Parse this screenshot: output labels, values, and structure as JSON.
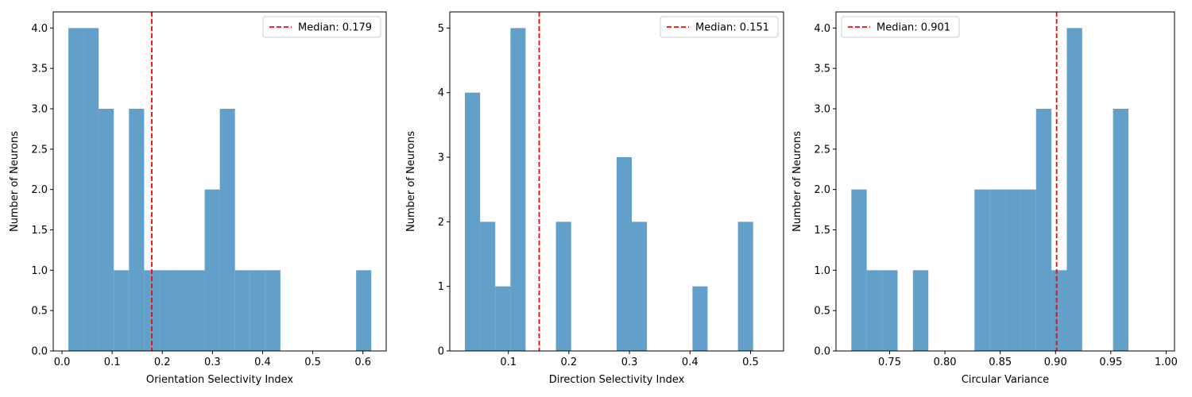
{
  "chart_data": [
    {
      "type": "bar",
      "subtype": "histogram",
      "xlabel": "Orientation Selectivity Index",
      "ylabel": "Number of Neurons",
      "xlim": [
        -0.0175,
        0.6465
      ],
      "ylim": [
        0,
        4.2
      ],
      "xticks": [
        0.0,
        0.1,
        0.2,
        0.3,
        0.4,
        0.5,
        0.6
      ],
      "xtick_labels": [
        "0.0",
        "0.1",
        "0.2",
        "0.3",
        "0.4",
        "0.5",
        "0.6"
      ],
      "yticks": [
        0.0,
        0.5,
        1.0,
        1.5,
        2.0,
        2.5,
        3.0,
        3.5,
        4.0
      ],
      "ytick_labels": [
        "0.0",
        "0.5",
        "1.0",
        "1.5",
        "2.0",
        "2.5",
        "3.0",
        "3.5",
        "4.0"
      ],
      "bin_edges": [
        0.0127,
        0.0429,
        0.0731,
        0.1033,
        0.1335,
        0.1637,
        0.1939,
        0.2241,
        0.2543,
        0.2845,
        0.3147,
        0.3449,
        0.3751,
        0.4053,
        0.4355,
        0.4657,
        0.4959,
        0.5261,
        0.5563,
        0.5865,
        0.6167
      ],
      "counts": [
        4,
        4,
        3,
        1,
        3,
        1,
        1,
        1,
        1,
        2,
        3,
        1,
        1,
        1,
        0,
        0,
        0,
        0,
        0,
        1
      ],
      "median": 0.179,
      "median_label": "Median: 0.179",
      "legend_position": "upper right",
      "grid": false,
      "bar_color": "#1f77b4",
      "median_color": "#ff0000"
    },
    {
      "type": "bar",
      "subtype": "histogram",
      "xlabel": "Direction Selectivity Index",
      "ylabel": "Number of Neurons",
      "xlim": [
        0.0033,
        0.5545
      ],
      "ylim": [
        0,
        5.25
      ],
      "xticks": [
        0.1,
        0.2,
        0.3,
        0.4,
        0.5
      ],
      "xtick_labels": [
        "0.1",
        "0.2",
        "0.3",
        "0.4",
        "0.5"
      ],
      "yticks": [
        0,
        1,
        2,
        3,
        4,
        5
      ],
      "ytick_labels": [
        "0",
        "1",
        "2",
        "3",
        "4",
        "5"
      ],
      "bin_edges": [
        0.0283,
        0.0534,
        0.0784,
        0.1035,
        0.1285,
        0.1536,
        0.1786,
        0.2037,
        0.2287,
        0.2538,
        0.2788,
        0.3039,
        0.3289,
        0.354,
        0.379,
        0.4041,
        0.4291,
        0.4542,
        0.4792,
        0.5043,
        0.5293
      ],
      "counts": [
        4,
        2,
        1,
        5,
        0,
        0,
        2,
        0,
        0,
        0,
        3,
        2,
        0,
        0,
        0,
        1,
        0,
        0,
        2,
        0
      ],
      "median": 0.151,
      "median_label": "Median: 0.151",
      "legend_position": "upper right",
      "grid": false,
      "bar_color": "#1f77b4",
      "median_color": "#ff0000"
    },
    {
      "type": "bar",
      "subtype": "histogram",
      "xlabel": "Circular Variance",
      "ylabel": "Number of Neurons",
      "xlim": [
        0.7015,
        1.0076
      ],
      "ylim": [
        0,
        4.2
      ],
      "xticks": [
        0.75,
        0.8,
        0.85,
        0.9,
        0.95,
        1.0
      ],
      "xtick_labels": [
        "0.75",
        "0.80",
        "0.85",
        "0.90",
        "0.95",
        "1.00"
      ],
      "yticks": [
        0.0,
        0.5,
        1.0,
        1.5,
        2.0,
        2.5,
        3.0,
        3.5,
        4.0
      ],
      "ytick_labels": [
        "0.0",
        "0.5",
        "1.0",
        "1.5",
        "2.0",
        "2.5",
        "3.0",
        "3.5",
        "4.0"
      ],
      "bin_edges": [
        0.7154,
        0.7293,
        0.7433,
        0.7572,
        0.7711,
        0.785,
        0.7989,
        0.8128,
        0.8267,
        0.8407,
        0.8546,
        0.8685,
        0.8824,
        0.8963,
        0.9102,
        0.9241,
        0.938,
        0.952,
        0.9659,
        0.9798,
        0.9937
      ],
      "counts": [
        2,
        1,
        1,
        0,
        1,
        0,
        0,
        0,
        2,
        2,
        2,
        2,
        3,
        1,
        4,
        0,
        0,
        3,
        0,
        0
      ],
      "median": 0.901,
      "median_label": "Median: 0.901",
      "legend_position": "upper left",
      "grid": false,
      "bar_color": "#1f77b4",
      "median_color": "#ff0000"
    }
  ]
}
